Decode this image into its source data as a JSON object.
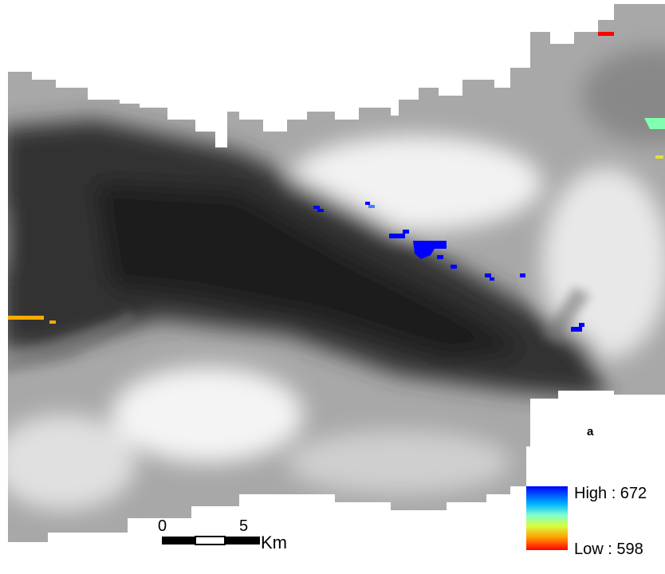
{
  "map": {
    "panel_label": "a",
    "legend": {
      "high_label": "High : 672",
      "low_label": "Low : 598"
    },
    "scale_bar": {
      "tick_labels": [
        "0",
        "5"
      ],
      "unit": "Km"
    }
  }
}
